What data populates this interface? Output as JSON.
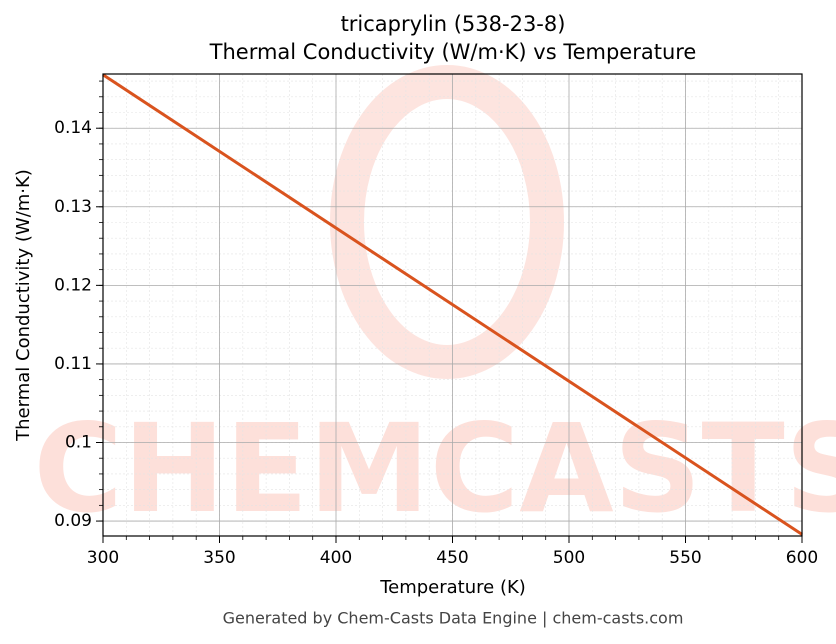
{
  "chart_data": {
    "type": "line",
    "title": "tricaprylin (538-23-8)",
    "subtitle": "Thermal Conductivity (W/m·K) vs Temperature",
    "xlabel": "Temperature (K)",
    "ylabel": "Thermal Conductivity (W/m·K)",
    "x": [
      300,
      600
    ],
    "series": [
      {
        "name": "tricaprylin",
        "color": "#d9531e",
        "values": [
          0.1468,
          0.0883
        ]
      }
    ],
    "xlim": [
      300,
      600
    ],
    "xticks": [
      300,
      350,
      400,
      450,
      500,
      550,
      600
    ],
    "ylim": [
      0.0881,
      0.1469
    ],
    "yticks": [
      0.09,
      0.1,
      0.11,
      0.12,
      0.13,
      0.14
    ],
    "grid": true,
    "minor_grid": true,
    "watermark": "CHEMCASTS",
    "footer": "Generated by Chem-Casts Data Engine | chem-casts.com"
  }
}
